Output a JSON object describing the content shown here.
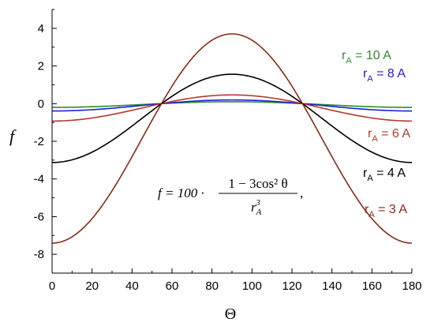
{
  "chart_data": {
    "type": "line",
    "xlabel": "Θ",
    "ylabel": "f",
    "xlim": [
      0,
      180
    ],
    "ylim": [
      -9,
      5
    ],
    "xticks": [
      0,
      20,
      40,
      60,
      80,
      100,
      120,
      140,
      160,
      180
    ],
    "yticks": [
      -8,
      -6,
      -4,
      -2,
      0,
      2,
      4
    ],
    "grid": false,
    "formula": {
      "lhs": "f = 100 ·",
      "numerator": "1 − 3cos² θ",
      "denominator": "r",
      "denominator_sub": "A",
      "denominator_sup": "3",
      "trailing": ","
    },
    "series": [
      {
        "name": "r",
        "name_sub": "A",
        "name_rest": " = 10 A",
        "rA": 10,
        "color": "#2e8b2e"
      },
      {
        "name": "r",
        "name_sub": "A",
        "name_rest": " = 8 A",
        "rA": 8,
        "color": "#1f1fd6"
      },
      {
        "name": "r",
        "name_sub": "A",
        "name_rest": " = 6 A",
        "rA": 6,
        "color": "#b23a2a"
      },
      {
        "name": "r",
        "name_sub": "A",
        "name_rest": " = 4 A",
        "rA": 4,
        "color": "#000000"
      },
      {
        "name": "r",
        "name_sub": "A",
        "name_rest": " = 3 A",
        "rA": 3,
        "color": "#8b2a1a"
      }
    ]
  }
}
